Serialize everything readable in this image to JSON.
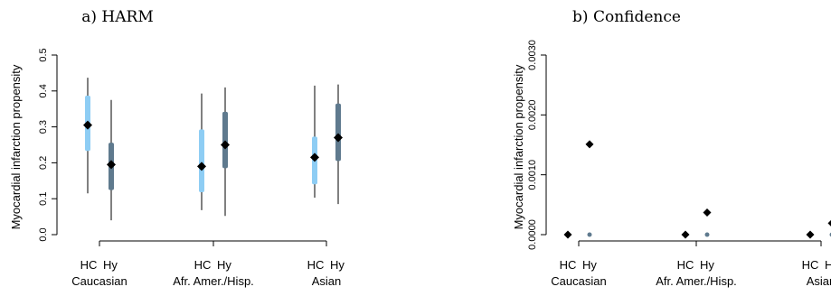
{
  "colors": {
    "hc": "#8ecdf4",
    "hy": "#5f7a8e",
    "line": "#000000",
    "point": "#000000"
  },
  "chart_data": [
    {
      "type": "interval",
      "title": "a) HARM",
      "ylabel": "Myocardial infarction propensity",
      "ylim": [
        0,
        0.5
      ],
      "yticks": [
        "0.0",
        "0.1",
        "0.2",
        "0.3",
        "0.4",
        "0.5"
      ],
      "groups": [
        "Caucasian",
        "Afr. Amer./Hisp.",
        "Asian"
      ],
      "series_labels": [
        "HC",
        "Hy"
      ],
      "data": [
        {
          "group": "Caucasian",
          "series": "HC",
          "low": 0.115,
          "q1": 0.233,
          "median": 0.305,
          "q3": 0.387,
          "high": 0.437
        },
        {
          "group": "Caucasian",
          "series": "Hy",
          "low": 0.04,
          "q1": 0.124,
          "median": 0.195,
          "q3": 0.256,
          "high": 0.375
        },
        {
          "group": "Afr. Amer./Hisp.",
          "series": "HC",
          "low": 0.068,
          "q1": 0.118,
          "median": 0.19,
          "q3": 0.293,
          "high": 0.393
        },
        {
          "group": "Afr. Amer./Hisp.",
          "series": "Hy",
          "low": 0.052,
          "q1": 0.185,
          "median": 0.25,
          "q3": 0.342,
          "high": 0.41
        },
        {
          "group": "Asian",
          "series": "HC",
          "low": 0.103,
          "q1": 0.14,
          "median": 0.215,
          "q3": 0.273,
          "high": 0.415
        },
        {
          "group": "Asian",
          "series": "Hy",
          "low": 0.085,
          "q1": 0.205,
          "median": 0.27,
          "q3": 0.365,
          "high": 0.418
        }
      ]
    },
    {
      "type": "scatter",
      "title": "b) Confidence",
      "ylabel": "Myocardial infarction propensity",
      "ylim": [
        0,
        0.003
      ],
      "yticks": [
        "0.0000",
        "0.0010",
        "0.0020",
        "0.0030"
      ],
      "groups": [
        "Caucasian",
        "Afr. Amer./Hisp.",
        "Asian"
      ],
      "series_labels": [
        "HC",
        "Hy"
      ],
      "points": [
        {
          "group": "Caucasian",
          "series": "HC",
          "value": 0.0,
          "marker": "diamond"
        },
        {
          "group": "Caucasian",
          "series": "Hy",
          "value": 0.00151,
          "marker": "diamond"
        },
        {
          "group": "Caucasian",
          "series": "Hy",
          "value": 0.0,
          "marker": "dot"
        },
        {
          "group": "Afr. Amer./Hisp.",
          "series": "HC",
          "value": 0.0,
          "marker": "diamond"
        },
        {
          "group": "Afr. Amer./Hisp.",
          "series": "Hy",
          "value": 0.00037,
          "marker": "diamond"
        },
        {
          "group": "Afr. Amer./Hisp.",
          "series": "Hy",
          "value": 0.0,
          "marker": "dot"
        },
        {
          "group": "Asian",
          "series": "HC",
          "value": 0.0,
          "marker": "diamond"
        },
        {
          "group": "Asian",
          "series": "Hy",
          "value": 0.00019,
          "marker": "diamond"
        },
        {
          "group": "Asian",
          "series": "Hy",
          "value": 0.0,
          "marker": "dot"
        }
      ]
    }
  ]
}
